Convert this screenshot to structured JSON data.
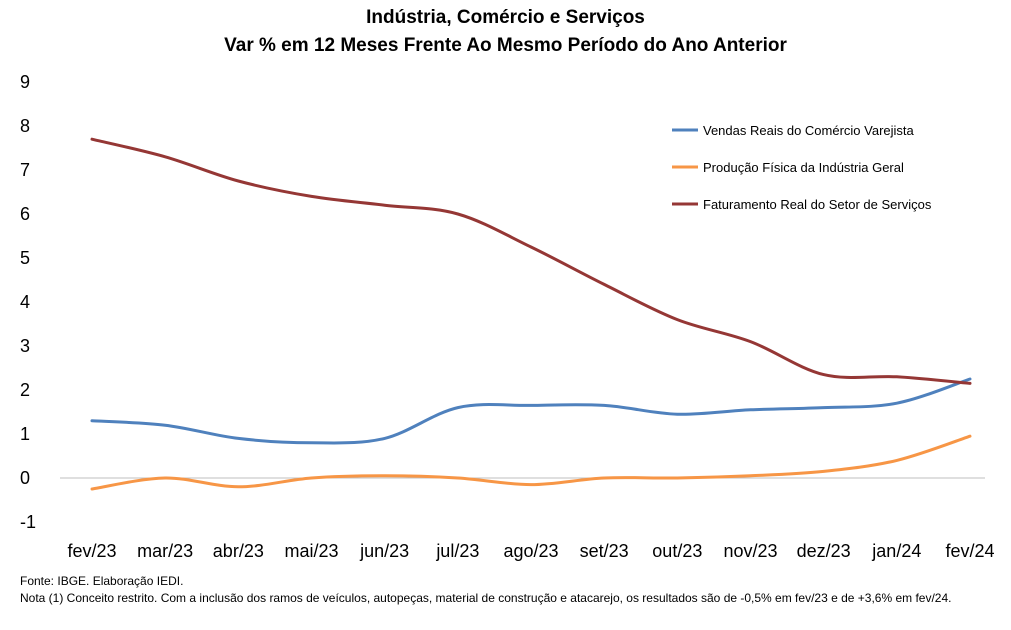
{
  "chart_data": {
    "type": "line",
    "title": "Indústria, Comércio e Serviços",
    "subtitle": "Var % em 12 Meses Frente Ao Mesmo Período do Ano Anterior",
    "xlabel": "",
    "ylabel": "",
    "categories": [
      "fev/23",
      "mar/23",
      "abr/23",
      "mai/23",
      "jun/23",
      "jul/23",
      "ago/23",
      "set/23",
      "out/23",
      "nov/23",
      "dez/23",
      "jan/24",
      "fev/24"
    ],
    "y_ticks": [
      -1,
      0,
      1,
      2,
      3,
      4,
      5,
      6,
      7,
      8,
      9
    ],
    "ylim": [
      -1,
      9
    ],
    "grid": false,
    "legend_position": "top-right",
    "series": [
      {
        "name": "Vendas Reais do Comércio Varejista",
        "color": "#4F81BD",
        "values": [
          1.3,
          1.2,
          0.9,
          0.8,
          0.9,
          1.6,
          1.65,
          1.65,
          1.45,
          1.55,
          1.6,
          1.7,
          2.25
        ]
      },
      {
        "name": "Produção Física da Indústria Geral",
        "color": "#F79646",
        "values": [
          -0.25,
          0.0,
          -0.2,
          0.0,
          0.05,
          0.0,
          -0.15,
          0.0,
          0.0,
          0.05,
          0.15,
          0.4,
          0.95
        ]
      },
      {
        "name": "Faturamento Real do Setor de Serviços",
        "color": "#953735",
        "values": [
          7.7,
          7.3,
          6.75,
          6.4,
          6.2,
          6.0,
          5.25,
          4.4,
          3.6,
          3.1,
          2.35,
          2.3,
          2.15
        ]
      }
    ]
  },
  "notes": {
    "source": "Fonte: IBGE. Elaboração IEDI.",
    "note": "Nota (1) Conceito restrito. Com a inclusão dos ramos de veículos, autopeças, material de construção e atacarejo, os resultados são de -0,5% em fev/23 e de +3,6% em fev/24."
  }
}
